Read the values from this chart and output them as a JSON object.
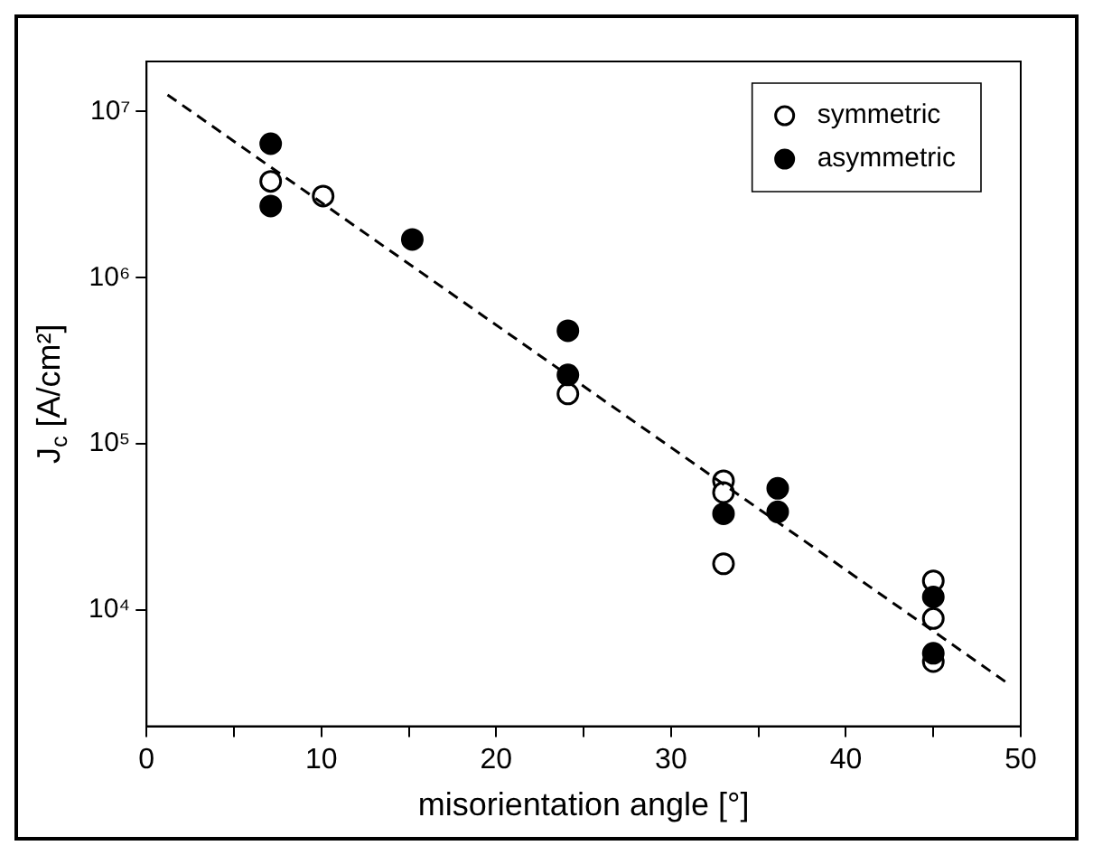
{
  "chart_data": {
    "type": "scatter",
    "xlabel": "misorientation angle [°]",
    "ylabel": "J$_{c}$ [A/cm²]",
    "xlim": [
      0,
      50
    ],
    "xticks": [
      0,
      {
        "value": 5,
        "label": null
      },
      10,
      {
        "value": 15,
        "label": null
      },
      20,
      {
        "value": 25,
        "label": null
      },
      30,
      {
        "value": 35,
        "label": null
      },
      40,
      {
        "value": 45,
        "label": null
      },
      50
    ],
    "ylim": [
      2000,
      20000000
    ],
    "yticks": [
      {
        "value": 10000,
        "label": "10⁴"
      },
      {
        "value": 100000,
        "label": "10⁵"
      },
      {
        "value": 1000000,
        "label": "10⁶"
      },
      {
        "value": 10000000,
        "label": "10⁷"
      }
    ],
    "log": "y",
    "grid": false,
    "legend": "top right",
    "series": [
      {
        "name": "symmetric",
        "color": "#000000",
        "marker": "circle",
        "x": [
          7.1,
          10.1,
          24.1,
          33,
          33,
          33,
          45,
          45,
          45
        ],
        "values": [
          3800000,
          3100000,
          200000,
          60000,
          51000,
          19000,
          15000,
          8900,
          4900
        ]
      },
      {
        "name": "asymmetric",
        "color": "#000000",
        "marker": "circle",
        "x": [
          7.1,
          7.1,
          15.2,
          24.1,
          24.1,
          33,
          36.1,
          36.1,
          45,
          45
        ],
        "values": [
          6400000,
          2700000,
          1700000,
          480000,
          260000,
          38000,
          54000,
          39000,
          12000,
          5500
        ]
      },
      {
        "type": "line",
        "color": "#000000",
        "line_style": "dashed",
        "marker": "none",
        "x": [
          1.2,
          49.3
        ],
        "values": [
          12600000,
          3600
        ]
      }
    ]
  }
}
